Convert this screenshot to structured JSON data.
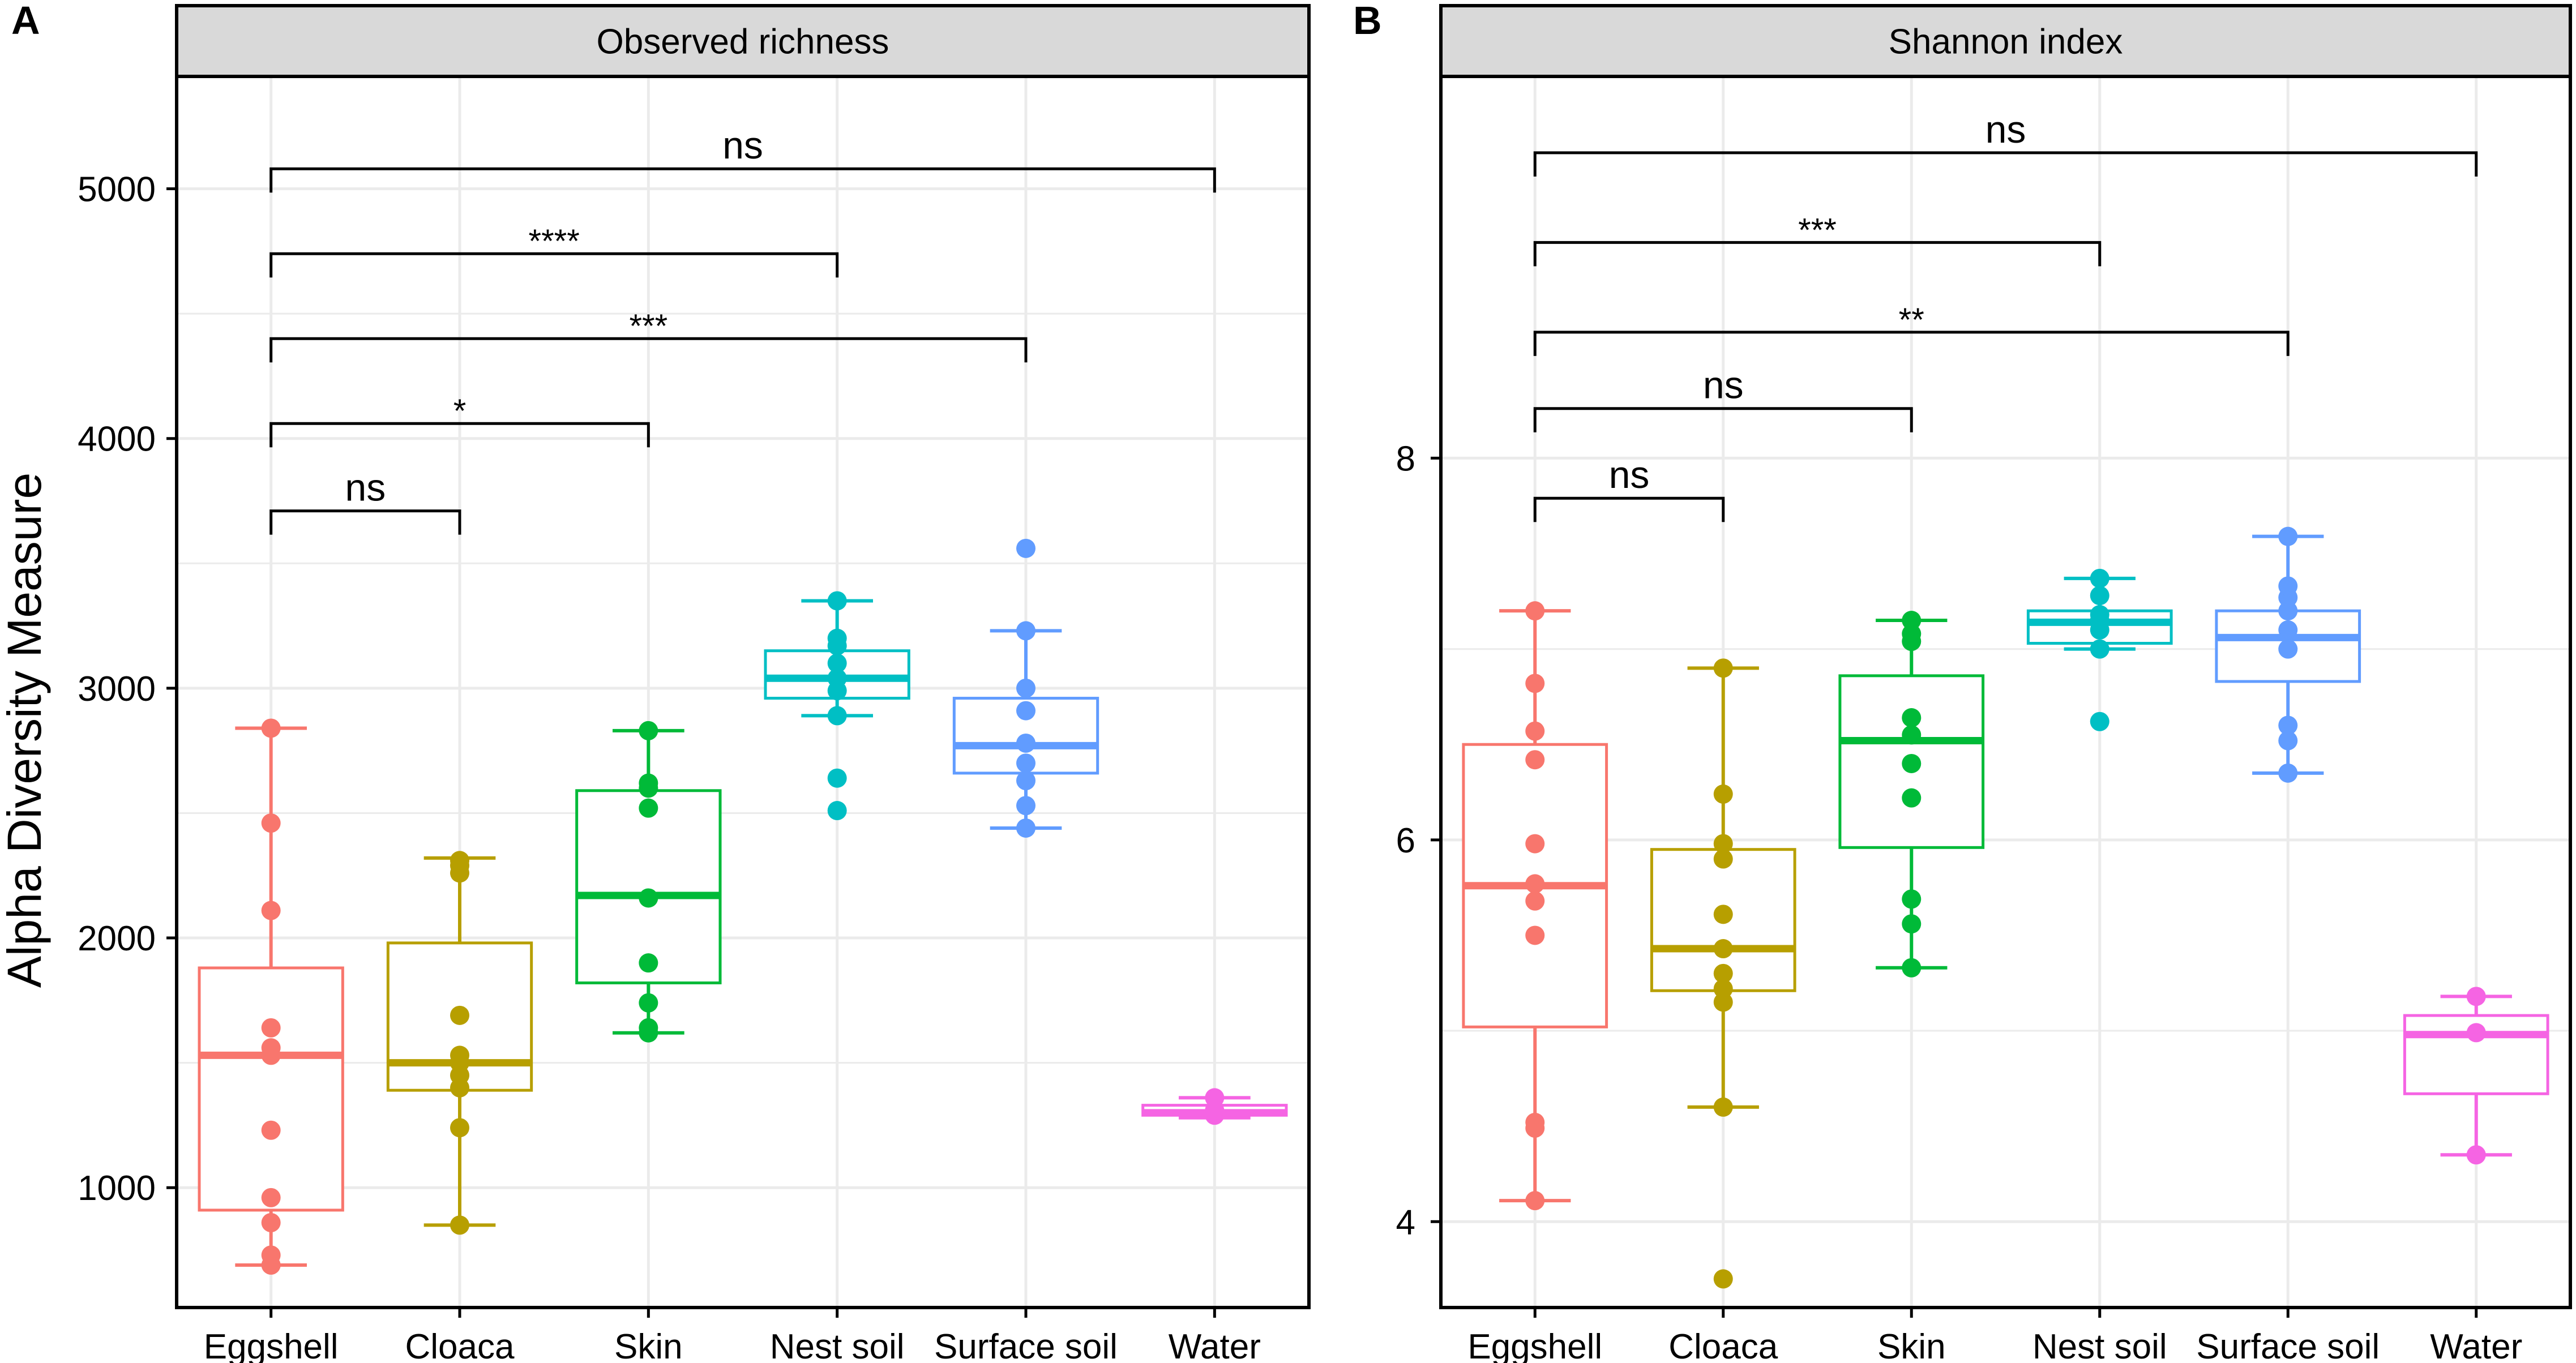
{
  "figure": {
    "ylabel": "Alpha Diversity Measure",
    "colors": {
      "Eggshell": "#F8766D",
      "Cloaca": "#B79F00",
      "Skin": "#00BA38",
      "Nest soil": "#00BFC4",
      "Surface soil": "#619CFF",
      "Water": "#F564E3",
      "strip": "#D9D9D9",
      "grid": "#EBEBEB"
    }
  },
  "chart_data": [
    {
      "type": "box",
      "panel_letter": "A",
      "title": "Observed richness",
      "xlabel": "",
      "ylabel": "Alpha Diversity Measure",
      "categories": [
        "Eggshell",
        "Cloaca",
        "Skin",
        "Nest soil",
        "Surface soil",
        "Water"
      ],
      "ylim": [
        520,
        5450
      ],
      "yticks": [
        1000,
        2000,
        3000,
        4000,
        5000
      ],
      "ytick_labels": [
        "1000",
        "2000",
        "3000",
        "4000",
        "5000"
      ],
      "grid": true,
      "boxes": [
        {
          "q1": 910,
          "median": 1530,
          "q3": 1880,
          "whisker_low": 690,
          "whisker_high": 2840,
          "points": [
            690,
            730,
            860,
            960,
            1230,
            1530,
            1560,
            1640,
            2110,
            2460,
            2840
          ]
        },
        {
          "q1": 1390,
          "median": 1500,
          "q3": 1980,
          "whisker_low": 850,
          "whisker_high": 2320,
          "points": [
            850,
            1240,
            1400,
            1450,
            1500,
            1530,
            1690,
            2260,
            2290,
            2310
          ]
        },
        {
          "q1": 1820,
          "median": 2170,
          "q3": 2590,
          "whisker_low": 1620,
          "whisker_high": 2830,
          "points": [
            1620,
            1640,
            1740,
            1900,
            2160,
            2520,
            2600,
            2620,
            2830
          ]
        },
        {
          "q1": 2960,
          "median": 3040,
          "q3": 3150,
          "whisker_low": 2890,
          "whisker_high": 3350,
          "points": [
            2510,
            2640,
            2890,
            2990,
            3040,
            3100,
            3170,
            3200,
            3350
          ]
        },
        {
          "q1": 2660,
          "median": 2770,
          "q3": 2960,
          "whisker_low": 2440,
          "whisker_high": 3230,
          "points": [
            2440,
            2530,
            2630,
            2700,
            2780,
            2910,
            3000,
            3230,
            3560
          ]
        },
        {
          "q1": 1290,
          "median": 1300,
          "q3": 1330,
          "whisker_low": 1280,
          "whisker_high": 1360,
          "points": [
            1290,
            1310,
            1360
          ]
        }
      ],
      "comparisons": [
        {
          "from": "Eggshell",
          "to": "Water",
          "y": 5080,
          "label": "ns"
        },
        {
          "from": "Eggshell",
          "to": "Nest soil",
          "y": 4740,
          "label": "****"
        },
        {
          "from": "Eggshell",
          "to": "Surface soil",
          "y": 4400,
          "label": "***"
        },
        {
          "from": "Eggshell",
          "to": "Skin",
          "y": 4060,
          "label": "*"
        },
        {
          "from": "Eggshell",
          "to": "Cloaca",
          "y": 3710,
          "label": "ns"
        }
      ]
    },
    {
      "type": "box",
      "panel_letter": "B",
      "title": "Shannon index",
      "xlabel": "",
      "ylabel": "",
      "categories": [
        "Eggshell",
        "Cloaca",
        "Skin",
        "Nest soil",
        "Surface soil",
        "Water"
      ],
      "ylim": [
        3.55,
        10.0
      ],
      "yticks": [
        4,
        6,
        8
      ],
      "ytick_labels": [
        "4",
        "6",
        "8"
      ],
      "grid": true,
      "boxes": [
        {
          "q1": 5.02,
          "median": 5.76,
          "q3": 6.5,
          "whisker_low": 4.11,
          "whisker_high": 7.2,
          "points": [
            4.11,
            4.49,
            4.52,
            5.5,
            5.68,
            5.77,
            5.98,
            6.42,
            6.57,
            6.82,
            7.2
          ]
        },
        {
          "q1": 5.21,
          "median": 5.43,
          "q3": 5.95,
          "whisker_low": 4.6,
          "whisker_high": 6.9,
          "points": [
            3.7,
            4.6,
            5.15,
            5.22,
            5.3,
            5.43,
            5.61,
            5.9,
            5.98,
            6.24,
            6.9
          ]
        },
        {
          "q1": 5.96,
          "median": 6.52,
          "q3": 6.86,
          "whisker_low": 5.33,
          "whisker_high": 7.15,
          "points": [
            5.33,
            5.56,
            5.69,
            6.22,
            6.4,
            6.55,
            6.64,
            7.04,
            7.08,
            7.15
          ]
        },
        {
          "q1": 7.03,
          "median": 7.14,
          "q3": 7.2,
          "whisker_low": 7.0,
          "whisker_high": 7.37,
          "points": [
            6.62,
            7.0,
            7.1,
            7.15,
            7.18,
            7.28,
            7.37
          ]
        },
        {
          "q1": 6.83,
          "median": 7.06,
          "q3": 7.2,
          "whisker_low": 6.35,
          "whisker_high": 7.59,
          "points": [
            6.35,
            6.52,
            6.6,
            7.0,
            7.1,
            7.2,
            7.27,
            7.33,
            7.59
          ]
        },
        {
          "q1": 4.67,
          "median": 4.98,
          "q3": 5.08,
          "whisker_low": 4.35,
          "whisker_high": 5.18,
          "points": [
            4.35,
            4.99,
            5.18
          ]
        }
      ],
      "comparisons": [
        {
          "from": "Eggshell",
          "to": "Water",
          "y": 9.6,
          "label": "ns"
        },
        {
          "from": "Eggshell",
          "to": "Nest soil",
          "y": 9.13,
          "label": "***"
        },
        {
          "from": "Eggshell",
          "to": "Surface soil",
          "y": 8.66,
          "label": "**"
        },
        {
          "from": "Eggshell",
          "to": "Skin",
          "y": 8.26,
          "label": "ns"
        },
        {
          "from": "Eggshell",
          "to": "Cloaca",
          "y": 7.79,
          "label": "ns"
        }
      ]
    }
  ]
}
